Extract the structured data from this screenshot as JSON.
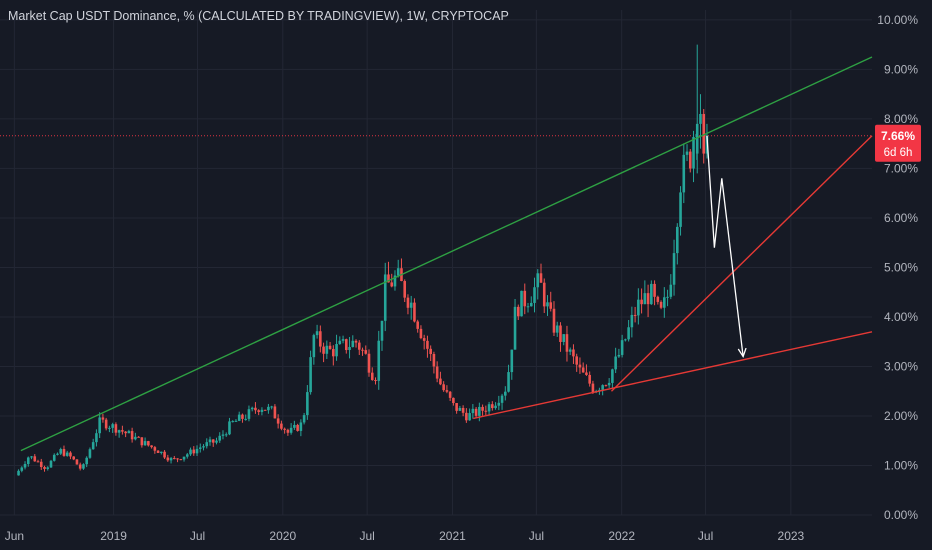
{
  "chart_data": {
    "type": "candlestick",
    "title": "Market Cap USDT Dominance, % (CALCULATED BY TRADINGVIEW), 1W, CRYPTOCAP",
    "y_axis": {
      "unit": "%",
      "ylim": [
        0,
        10.2
      ],
      "ticks": [
        "0.00%",
        "1.00%",
        "2.00%",
        "3.00%",
        "4.00%",
        "5.00%",
        "6.00%",
        "7.00%",
        "8.00%",
        "9.00%",
        "10.00%"
      ],
      "tick_values": [
        0,
        1,
        2,
        3,
        4,
        5,
        6,
        7,
        8,
        9,
        10
      ]
    },
    "x_axis": {
      "ticks": [
        "Jun",
        "2019",
        "Jul",
        "2020",
        "Jul",
        "2021",
        "Jul",
        "2022",
        "Jul",
        "2023"
      ],
      "tick_dates": [
        "2018-06-01",
        "2019-01-01",
        "2019-07-01",
        "2020-01-01",
        "2020-07-01",
        "2021-01-01",
        "2021-07-01",
        "2022-01-01",
        "2022-07-01",
        "2023-01-01"
      ],
      "xlim": [
        "2018-05-01",
        "2023-06-25"
      ]
    },
    "grid": true,
    "last_price": {
      "value": 7.66,
      "label": "7.66%",
      "countdown": "6d 6h",
      "color": "#f23645"
    },
    "price_path": [
      [
        "2018-06-10",
        0.8
      ],
      [
        "2018-07-10",
        1.2
      ],
      [
        "2018-08-15",
        0.95
      ],
      [
        "2018-09-15",
        1.3
      ],
      [
        "2018-10-10",
        1.15
      ],
      [
        "2018-11-01",
        0.9
      ],
      [
        "2018-12-10",
        1.9
      ],
      [
        "2019-01-15",
        1.75
      ],
      [
        "2019-02-15",
        1.6
      ],
      [
        "2019-03-15",
        1.45
      ],
      [
        "2019-04-15",
        1.3
      ],
      [
        "2019-05-15",
        1.1
      ],
      [
        "2019-06-20",
        1.25
      ],
      [
        "2019-07-20",
        1.4
      ],
      [
        "2019-08-20",
        1.5
      ],
      [
        "2019-09-20",
        1.85
      ],
      [
        "2019-10-20",
        2.0
      ],
      [
        "2019-11-20",
        2.2
      ],
      [
        "2019-12-15",
        2.1
      ],
      [
        "2020-01-20",
        1.65
      ],
      [
        "2020-02-20",
        1.85
      ],
      [
        "2020-03-15",
        3.6
      ],
      [
        "2020-04-15",
        3.3
      ],
      [
        "2020-05-15",
        3.4
      ],
      [
        "2020-06-15",
        3.5
      ],
      [
        "2020-07-05",
        3.2
      ],
      [
        "2020-07-25",
        2.75
      ],
      [
        "2020-08-15",
        4.6
      ],
      [
        "2020-09-10",
        4.8
      ],
      [
        "2020-10-10",
        4.3
      ],
      [
        "2020-11-10",
        3.5
      ],
      [
        "2020-12-15",
        2.6
      ],
      [
        "2021-01-10",
        2.2
      ],
      [
        "2021-02-10",
        2.0
      ],
      [
        "2021-03-10",
        2.1
      ],
      [
        "2021-04-10",
        2.3
      ],
      [
        "2021-05-05",
        2.6
      ],
      [
        "2021-05-25",
        4.2
      ],
      [
        "2021-06-20",
        4.4
      ],
      [
        "2021-07-15",
        4.7
      ],
      [
        "2021-08-10",
        3.9
      ],
      [
        "2021-09-10",
        3.4
      ],
      [
        "2021-10-10",
        2.9
      ],
      [
        "2021-11-10",
        2.55
      ],
      [
        "2021-12-10",
        2.75
      ],
      [
        "2022-01-10",
        3.4
      ],
      [
        "2022-02-10",
        4.2
      ],
      [
        "2022-03-10",
        4.5
      ],
      [
        "2022-04-01",
        4.0
      ],
      [
        "2022-04-20",
        4.5
      ],
      [
        "2022-05-15",
        6.8
      ],
      [
        "2022-06-05",
        7.3
      ],
      [
        "2022-06-20",
        8.2
      ],
      [
        "2022-07-01",
        7.66
      ]
    ],
    "highlight_candles": [
      [
        "2022-06-13",
        7.3,
        9.5,
        6.9,
        7.9
      ],
      [
        "2022-06-20",
        7.9,
        8.5,
        7.4,
        8.1
      ],
      [
        "2022-06-27",
        8.1,
        8.2,
        7.1,
        7.3
      ],
      [
        "2022-07-04",
        7.3,
        7.9,
        7.2,
        7.66
      ]
    ],
    "annotations": {
      "green_resistance": {
        "from": [
          "2018-06-15",
          1.3
        ],
        "to": [
          "2023-06-25",
          9.25
        ],
        "color": "#2ea043"
      },
      "red_support_steep": {
        "from": [
          "2021-12-10",
          2.5
        ],
        "to": [
          "2023-06-25",
          7.66
        ],
        "color": "#e53935"
      },
      "red_support_shallow": {
        "from": [
          "2021-02-15",
          1.95
        ],
        "to": [
          "2023-06-25",
          3.7
        ],
        "color": "#e53935"
      },
      "projection_path": [
        [
          "2022-07-04",
          7.66
        ],
        [
          "2022-07-20",
          5.4
        ],
        [
          "2022-08-05",
          6.8
        ],
        [
          "2022-09-20",
          3.2
        ]
      ],
      "last_price_line_color": "#f23645"
    }
  }
}
